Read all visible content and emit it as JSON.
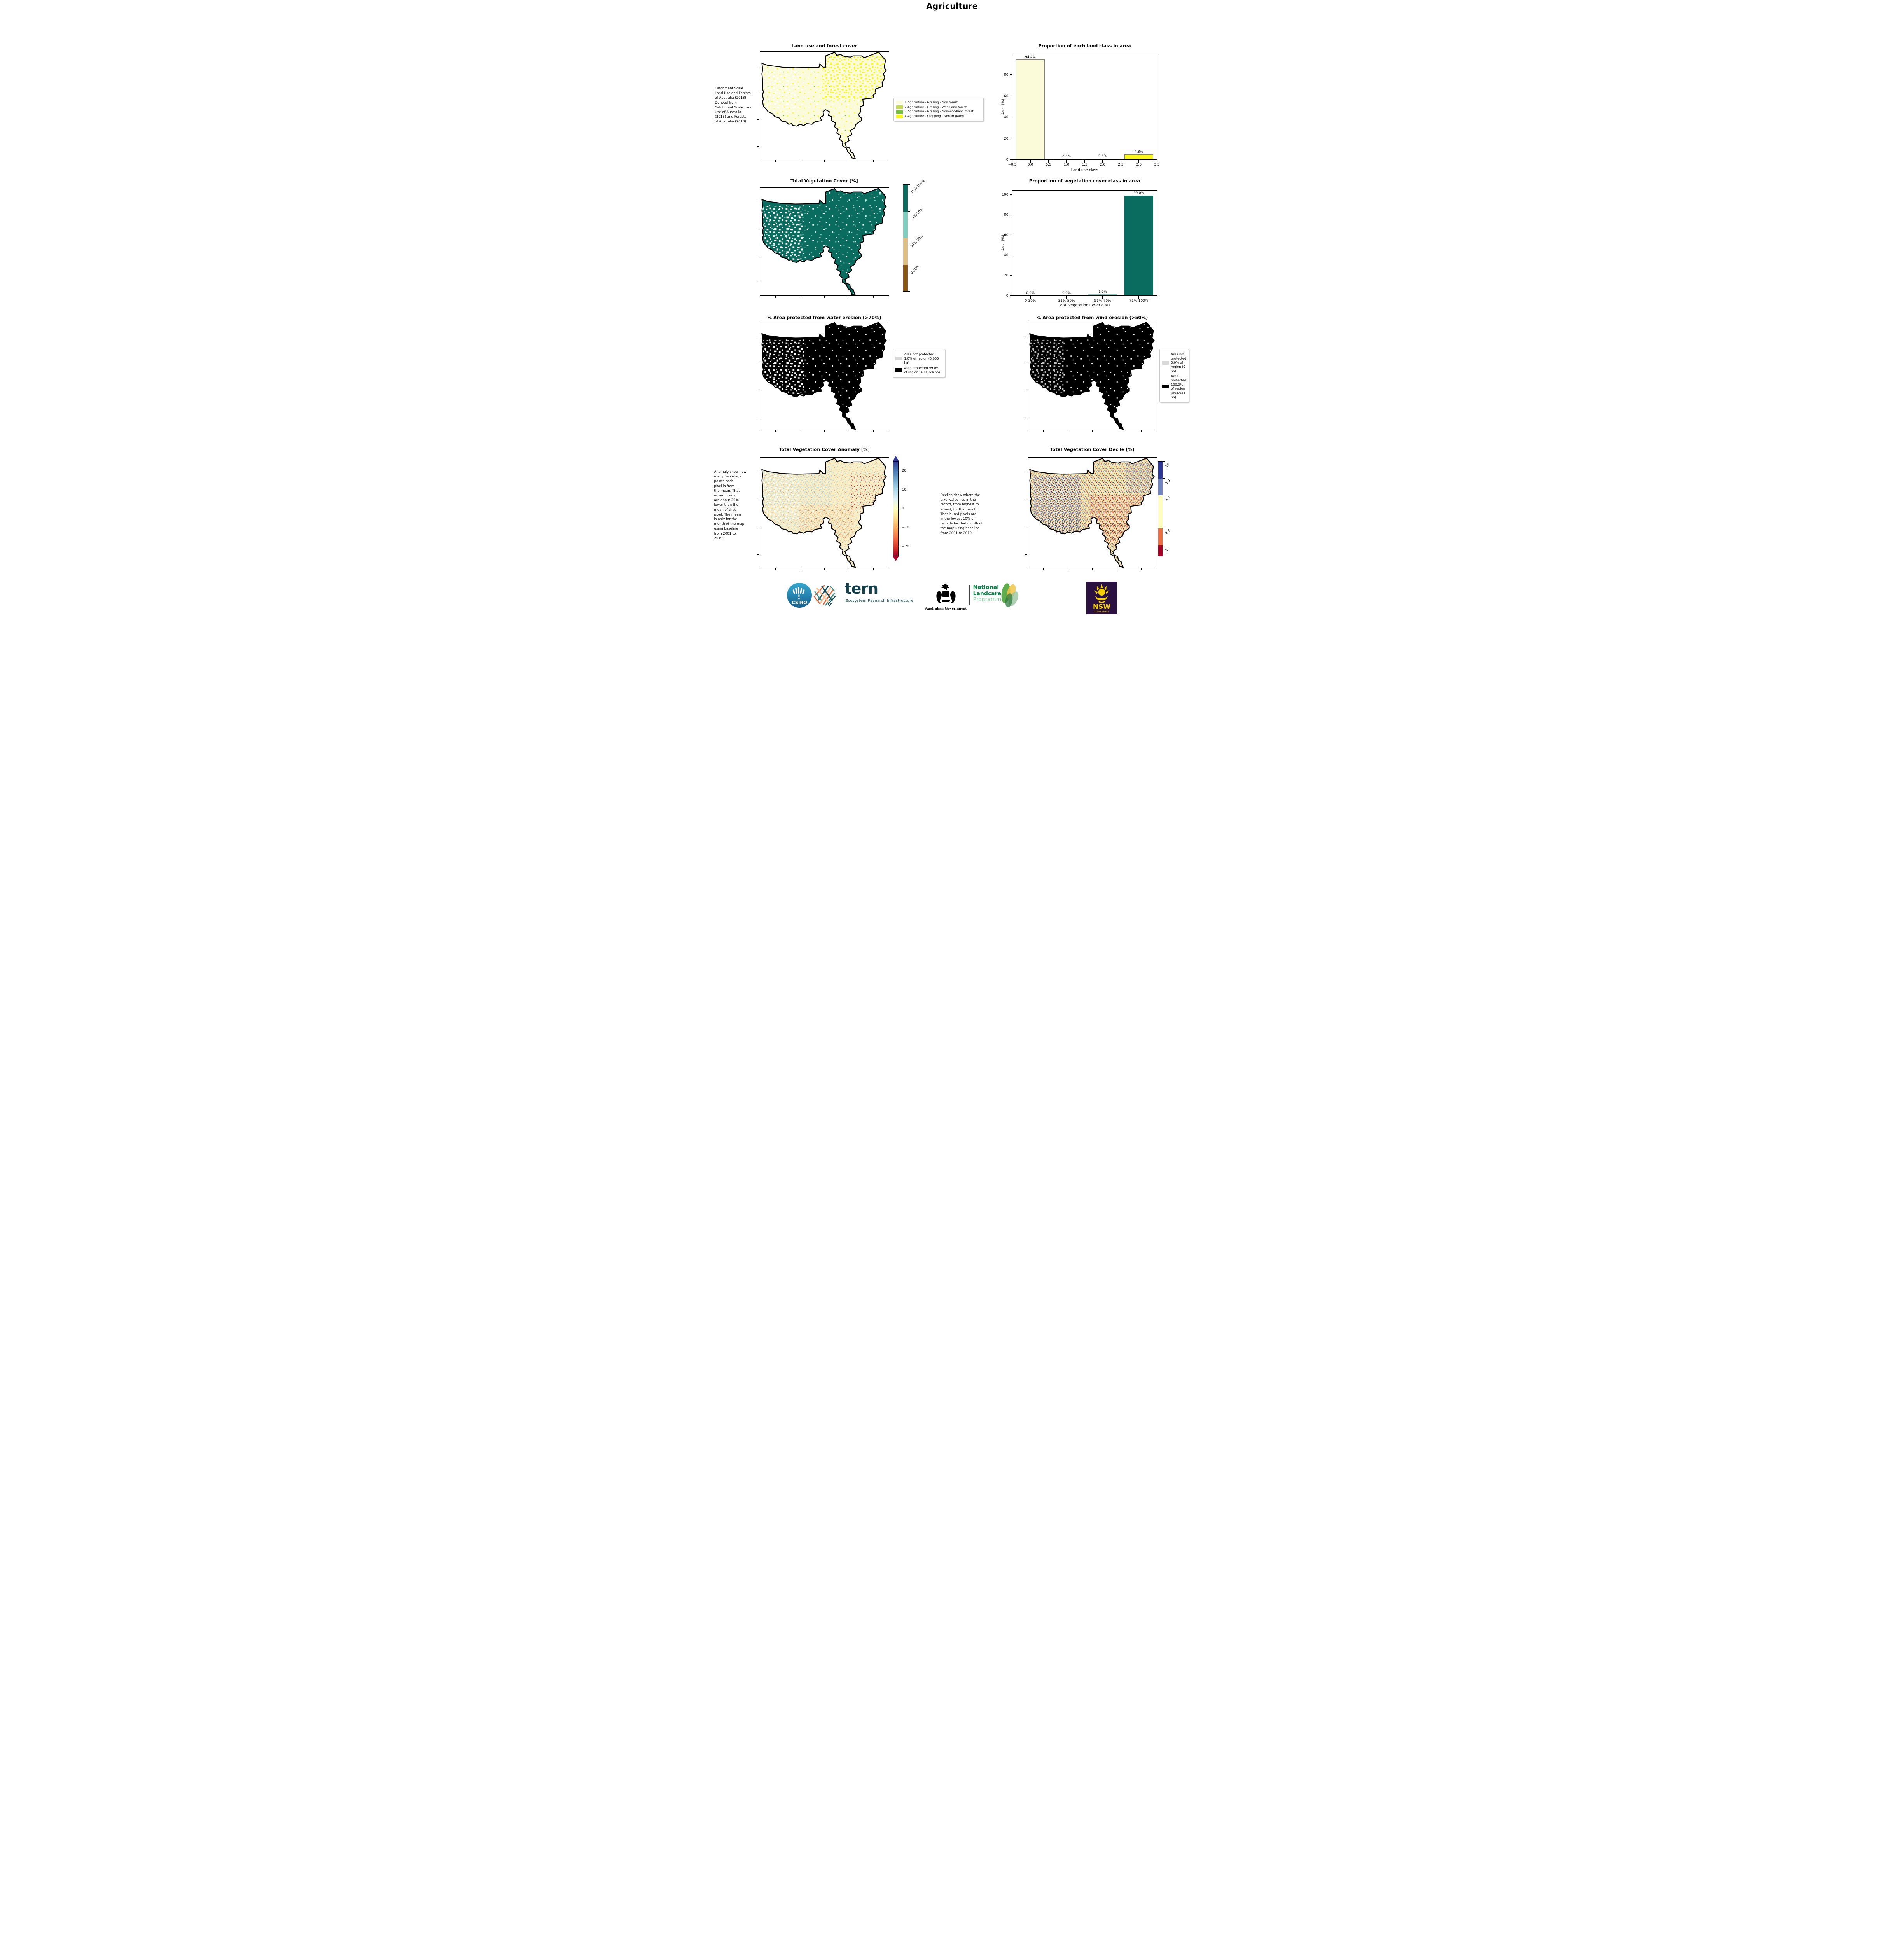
{
  "title": "Agriculture",
  "panels": {
    "landuse": {
      "title": "Land use and forest cover",
      "note": " Catchment Scale\nLand Use and Forests\nof Australia (2018)\nDerived from\nCatchment Scale Land\nUse of Australia\n(2018) and Forests\nof Australia (2018)",
      "legend": [
        {
          "label": "1 Agriculture - Grazing - Non forest",
          "color": "#FBFBD9"
        },
        {
          "label": "2 Agriculture - Grazing - Woodland forest",
          "color": "#C6DA52"
        },
        {
          "label": "3 Agriculture - Grazing - Non-woodland forest",
          "color": "#74C43B"
        },
        {
          "label": "4 Agriculture - Cropping - Non-irrigated",
          "color": "#F9F71C"
        }
      ]
    },
    "veg": {
      "title": "Total Vegetation Cover [%]",
      "colorbar": [
        {
          "label": "71%-100%",
          "color": "#0A6B5F"
        },
        {
          "label": "51%-70%",
          "color": "#7FCDBF"
        },
        {
          "label": "31%-50%",
          "color": "#DFC084"
        },
        {
          "label": "0-30%",
          "color": "#8A5713"
        }
      ]
    },
    "water": {
      "title": "% Area protected from water erosion (>70%)",
      "legend": [
        {
          "label": "Area not protected 1.0% of region (5,050 ha)",
          "color": "#D9D9D9"
        },
        {
          "label": "Area protected 99.0% of region (499,974 ha)",
          "color": "#000000"
        }
      ]
    },
    "wind": {
      "title": "% Area protected from wind erosion (>50%)",
      "legend": [
        {
          "label": "Area not protected 0.0% of region (0 ha)",
          "color": "#D9D9D9"
        },
        {
          "label": "Area protected 100.0% of region (505,025 ha)",
          "color": "#000000"
        }
      ]
    },
    "anomaly": {
      "title": "Total Vegetation Cover Anomaly [%]",
      "note": "Anomaly show how\nmany percetage\npoints each\npixel is from\nthe mean. That\nis, red pixels\nare about 20%\nlower than the\nmean of that\npixel. The mean\nis only for the\nmonth of the map\nusing baseline\nfrom 2001 to\n2019.",
      "colorbar_ticks": [
        "20",
        "10",
        "0",
        "−10",
        "−20"
      ]
    },
    "decile": {
      "title": "Total Vegetation Cover Decile [%]",
      "note": "Deciles show where the\npixel value lies in the\nrecord, from highest to\nlowest, for that month.\nThat is, red pixels are\nin the lowest 10% of\nrecords for that month of\nthe map using baseline\nfrom 2001 to 2019.",
      "colorbar": [
        {
          "label": "10",
          "color": "#2D3894"
        },
        {
          "label": "8-9",
          "color": "#7186BF"
        },
        {
          "label": "4-7",
          "color": "#FFFFBF"
        },
        {
          "label": "2-3",
          "color": "#EC6E43"
        },
        {
          "label": "1",
          "color": "#A50026"
        }
      ]
    }
  },
  "chart_data": [
    {
      "type": "bar",
      "title": "Proportion of each land class in area",
      "xlabel": "Land use class",
      "ylabel": "Area (%)",
      "x": [
        0,
        1,
        2,
        3
      ],
      "values": [
        94.4,
        0.3,
        0.6,
        4.8
      ],
      "bar_labels": [
        "94.4%",
        "0.3%",
        "0.6%",
        "4.8%"
      ],
      "bar_colors": [
        "#FBFBD9",
        "#C6DA52",
        "#74C43B",
        "#F9F71C"
      ],
      "bar_edge": "#808080",
      "xlim": [
        -0.5,
        3.5
      ],
      "ylim": [
        0,
        99.1
      ],
      "xticks": [
        -0.5,
        0,
        0.5,
        1,
        1.5,
        2,
        2.5,
        3,
        3.5
      ],
      "xtick_labels": [
        "−0.5",
        "0.0",
        "0.5",
        "1.0",
        "1.5",
        "2.0",
        "2.5",
        "3.0",
        "3.5"
      ],
      "yticks": [
        0,
        20,
        40,
        60,
        80
      ],
      "legend_position": "none",
      "grid": false
    },
    {
      "type": "bar",
      "title": "Proportion of vegetation cover class in area",
      "xlabel": "Total Vegetation Cover class",
      "ylabel": "Area (%)",
      "categories": [
        "0-30%",
        "31%-50%",
        "51%-70%",
        "71%-100%"
      ],
      "values": [
        0.0,
        0.0,
        1.0,
        99.0
      ],
      "bar_labels": [
        "0.0%",
        "0.0%",
        "1.0%",
        "99.0%"
      ],
      "bar_colors": [
        "#8A5713",
        "#DFC084",
        "#7FCDBF",
        "#0A6B5F"
      ],
      "ylim": [
        0,
        104
      ],
      "yticks": [
        0,
        20,
        40,
        60,
        80,
        100
      ],
      "legend_position": "none",
      "grid": false
    }
  ],
  "logos": {
    "csiro": {
      "text": "CSIRO"
    },
    "tern": {
      "name": "tern",
      "subtitle": "Ecosystem Research Infrastructure"
    },
    "aus_gov": {
      "text": "Australian Government"
    },
    "landcare": {
      "line1": "National",
      "line2": "Landcare",
      "line3": "Programme"
    },
    "nsw": {
      "line1": "NSW",
      "line2": "GOVERNMENT"
    }
  }
}
